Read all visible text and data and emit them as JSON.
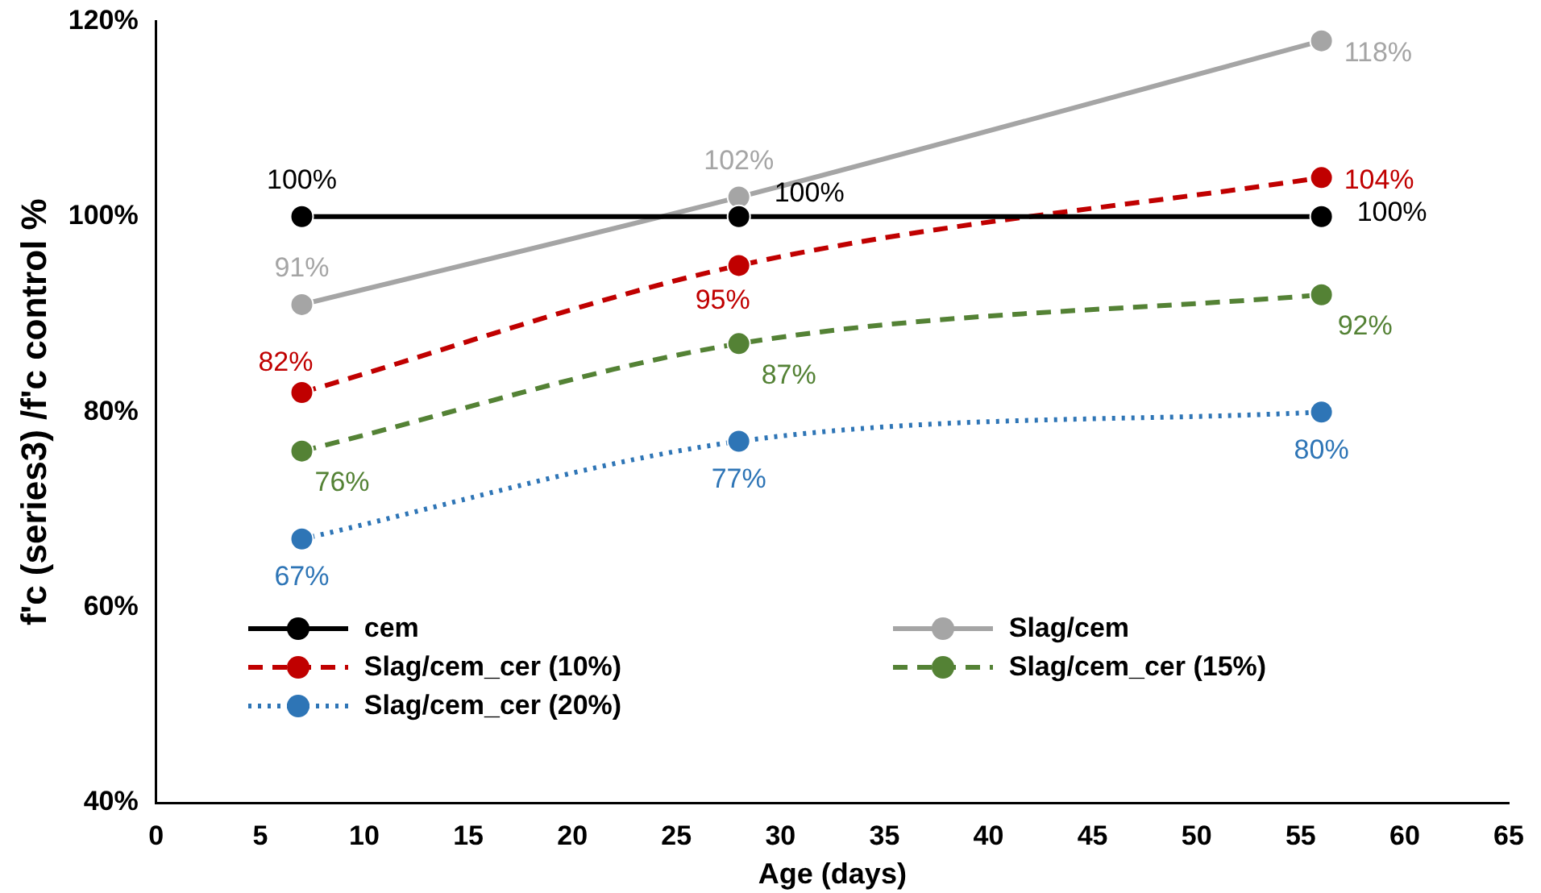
{
  "chart_data": {
    "type": "line",
    "xlabel": "Age (days)",
    "ylabel": "f'c (series3) /f'c control %",
    "x": [
      7,
      28,
      56
    ],
    "xlim": [
      0,
      65
    ],
    "xticks": [
      0,
      5,
      10,
      15,
      20,
      25,
      30,
      35,
      40,
      45,
      50,
      55,
      60,
      65
    ],
    "ylim": [
      40,
      120
    ],
    "yticks": [
      {
        "value": 40,
        "label": "40%"
      },
      {
        "value": 60,
        "label": "60%"
      },
      {
        "value": 80,
        "label": "80%"
      },
      {
        "value": 100,
        "label": "100%"
      },
      {
        "value": 120,
        "label": "120%"
      }
    ],
    "grid": false,
    "legend": "bottom",
    "marker": "circle",
    "series": [
      {
        "name": "cem",
        "color": "#000000",
        "line_style": "solid",
        "values": [
          100,
          100,
          100
        ],
        "value_labels": [
          "100%",
          "100%",
          "100%"
        ]
      },
      {
        "name": "Slag/cem",
        "color": "#a5a5a5",
        "line_style": "solid",
        "values": [
          91,
          102,
          118
        ],
        "value_labels": [
          "91%",
          "102%",
          "118%"
        ]
      },
      {
        "name": "Slag/cem_cer (10%)",
        "color": "#c00000",
        "line_style": "dashed",
        "values": [
          82,
          95,
          104
        ],
        "value_labels": [
          "82%",
          "95%",
          "104%"
        ]
      },
      {
        "name": "Slag/cem_cer (15%)",
        "color": "#548235",
        "line_style": "dashed",
        "values": [
          76,
          87,
          92
        ],
        "value_labels": [
          "76%",
          "87%",
          "92%"
        ]
      },
      {
        "name": "Slag/cem_cer (20%)",
        "color": "#2e75b6",
        "line_style": "dotted",
        "values": [
          67,
          77,
          80
        ],
        "value_labels": [
          "67%",
          "77%",
          "80%"
        ]
      }
    ]
  }
}
